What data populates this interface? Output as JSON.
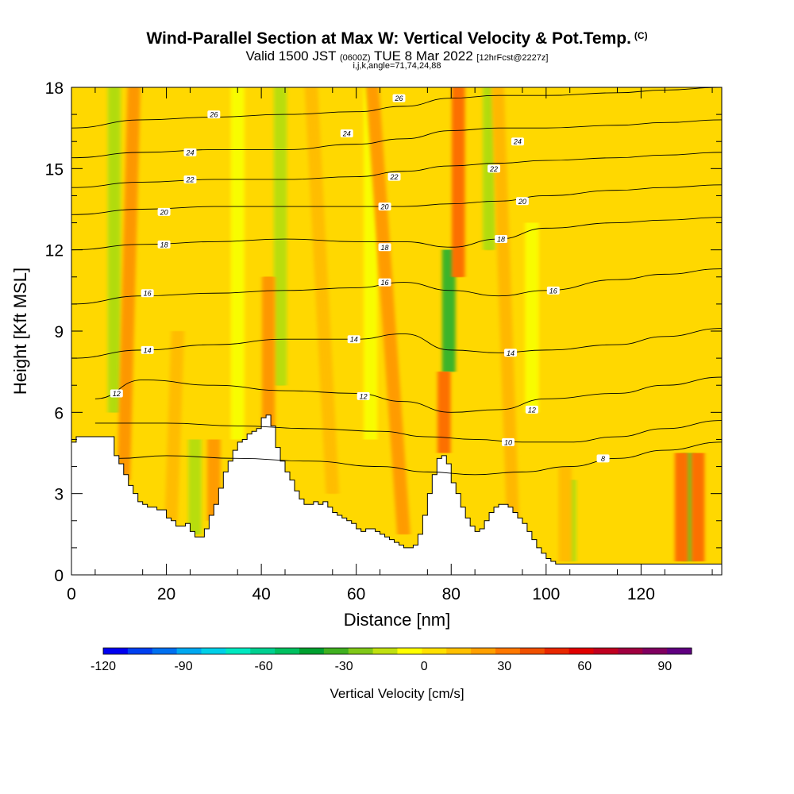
{
  "chart_data": {
    "type": "heatmap",
    "title": "Wind-Parallel Section at Max W: Vertical Velocity & Pot.Temp.",
    "title_mark": "(C)",
    "subtitle_prefix": "Valid 1500 JST",
    "subtitle_small1": "(0600Z)",
    "subtitle_main": "TUE 8 Mar 2022",
    "subtitle_small2": "[12hrFcst@2227z]",
    "subtitle2": "i,j,k,angle=71,74,24,88",
    "xlabel": "Distance [nm]",
    "ylabel": "Height [Kft MSL]",
    "xlim": [
      0,
      137
    ],
    "ylim": [
      0,
      18
    ],
    "xticks": [
      "0",
      "20",
      "40",
      "60",
      "80",
      "100",
      "120"
    ],
    "xtick_values": [
      0,
      20,
      40,
      60,
      80,
      100,
      120
    ],
    "yticks": [
      "0",
      "3",
      "6",
      "9",
      "12",
      "15",
      "18"
    ],
    "ytick_values": [
      0,
      3,
      6,
      9,
      12,
      15,
      18
    ],
    "colorbar": {
      "label": "Vertical Velocity [cm/s]",
      "range": [
        -120,
        100
      ],
      "tick_labels": [
        "-120",
        "-90",
        "-60",
        "-30",
        "0",
        "30",
        "60",
        "90"
      ],
      "tick_values": [
        -120,
        -90,
        -60,
        -30,
        0,
        30,
        60,
        90
      ],
      "colors": [
        "#0000f0",
        "#0040f0",
        "#0070f0",
        "#00a8f0",
        "#00d0e8",
        "#00e8c0",
        "#00d090",
        "#00c060",
        "#00a030",
        "#40b020",
        "#80c818",
        "#c0e010",
        "#ffff00",
        "#ffe000",
        "#ffc000",
        "#ffa000",
        "#ff7800",
        "#f05000",
        "#e82800",
        "#e00000",
        "#c00020",
        "#a00040",
        "#800060",
        "#600080"
      ]
    },
    "background_color": "#ffd800",
    "terrain": [
      [
        0,
        4.9
      ],
      [
        1,
        5.1
      ],
      [
        7,
        5.1
      ],
      [
        9,
        4.4
      ],
      [
        10,
        4.1
      ],
      [
        11,
        3.7
      ],
      [
        12,
        3.3
      ],
      [
        13,
        3.0
      ],
      [
        14,
        2.7
      ],
      [
        15,
        2.6
      ],
      [
        16,
        2.5
      ],
      [
        17,
        2.5
      ],
      [
        18,
        2.4
      ],
      [
        19,
        2.4
      ],
      [
        20,
        2.1
      ],
      [
        21,
        2.0
      ],
      [
        22,
        1.8
      ],
      [
        23,
        1.8
      ],
      [
        24,
        1.9
      ],
      [
        25,
        1.6
      ],
      [
        26,
        1.4
      ],
      [
        27,
        1.4
      ],
      [
        28,
        1.7
      ],
      [
        29,
        2.2
      ],
      [
        30,
        2.6
      ],
      [
        31,
        3.2
      ],
      [
        32,
        3.8
      ],
      [
        33,
        4.2
      ],
      [
        34,
        4.6
      ],
      [
        35,
        4.9
      ],
      [
        36,
        5.0
      ],
      [
        37,
        5.2
      ],
      [
        38,
        5.3
      ],
      [
        39,
        5.4
      ],
      [
        40,
        5.8
      ],
      [
        41,
        5.9
      ],
      [
        42,
        5.5
      ],
      [
        43,
        4.7
      ],
      [
        44,
        4.2
      ],
      [
        45,
        3.8
      ],
      [
        46,
        3.5
      ],
      [
        47,
        3.1
      ],
      [
        48,
        2.8
      ],
      [
        49,
        2.6
      ],
      [
        50,
        2.6
      ],
      [
        51,
        2.7
      ],
      [
        52,
        2.6
      ],
      [
        53,
        2.7
      ],
      [
        54,
        2.5
      ],
      [
        55,
        2.3
      ],
      [
        56,
        2.2
      ],
      [
        57,
        2.1
      ],
      [
        58,
        2.0
      ],
      [
        59,
        1.9
      ],
      [
        60,
        1.7
      ],
      [
        61,
        1.6
      ],
      [
        62,
        1.7
      ],
      [
        63,
        1.7
      ],
      [
        64,
        1.6
      ],
      [
        65,
        1.5
      ],
      [
        66,
        1.4
      ],
      [
        67,
        1.3
      ],
      [
        68,
        1.2
      ],
      [
        69,
        1.1
      ],
      [
        70,
        1.0
      ],
      [
        71,
        1.0
      ],
      [
        72,
        1.1
      ],
      [
        73,
        1.5
      ],
      [
        74,
        2.2
      ],
      [
        75,
        3.0
      ],
      [
        76,
        3.7
      ],
      [
        77,
        4.3
      ],
      [
        78,
        4.4
      ],
      [
        79,
        4.1
      ],
      [
        80,
        3.4
      ],
      [
        81,
        3.0
      ],
      [
        82,
        2.5
      ],
      [
        83,
        2.1
      ],
      [
        84,
        1.8
      ],
      [
        85,
        1.6
      ],
      [
        86,
        1.7
      ],
      [
        87,
        2.0
      ],
      [
        88,
        2.3
      ],
      [
        89,
        2.5
      ],
      [
        90,
        2.6
      ],
      [
        91,
        2.6
      ],
      [
        92,
        2.5
      ],
      [
        93,
        2.3
      ],
      [
        94,
        2.1
      ],
      [
        95,
        1.9
      ],
      [
        96,
        1.6
      ],
      [
        97,
        1.3
      ],
      [
        98,
        1.0
      ],
      [
        99,
        0.8
      ],
      [
        100,
        0.6
      ],
      [
        101,
        0.5
      ],
      [
        102,
        0.4
      ],
      [
        103,
        0.4
      ],
      [
        137,
        0.4
      ]
    ],
    "updrafts": [
      {
        "x": 11,
        "z0": 3.5,
        "z1": 18,
        "w": 55,
        "tilt": 0.15
      },
      {
        "x": 21,
        "z0": 2.0,
        "z1": 9,
        "w": 30,
        "tilt": 0.2
      },
      {
        "x": 30,
        "z0": 2.0,
        "z1": 5,
        "w": 50,
        "tilt": 0.0
      },
      {
        "x": 41.5,
        "z0": 5.5,
        "z1": 11,
        "w": 55,
        "tilt": 0.0
      },
      {
        "x": 55,
        "z0": 3.0,
        "z1": 18,
        "w": 25,
        "tilt": -0.3
      },
      {
        "x": 70,
        "z0": 1.5,
        "z1": 18,
        "w": 45,
        "tilt": -0.4
      },
      {
        "x": 78.5,
        "z0": 4.5,
        "z1": 7.5,
        "w": 70,
        "tilt": 0.0
      },
      {
        "x": 81.5,
        "z0": 11,
        "z1": 18,
        "w": 70,
        "tilt": 0.0
      },
      {
        "x": 93,
        "z0": 2.0,
        "z1": 18,
        "w": 40,
        "tilt": -0.2
      },
      {
        "x": 104,
        "z0": 0.5,
        "z1": 4,
        "w": 30,
        "tilt": 0.0
      },
      {
        "x": 128.5,
        "z0": 0.5,
        "z1": 4.5,
        "w": 70,
        "tilt": 0.0
      },
      {
        "x": 132,
        "z0": 0.5,
        "z1": 4.5,
        "w": 75,
        "tilt": 0.0
      }
    ],
    "downdrafts": [
      {
        "x": 9,
        "z0": 6.0,
        "z1": 18,
        "w": -45
      },
      {
        "x": 26,
        "z0": 1.5,
        "z1": 5,
        "w": -40
      },
      {
        "x": 35,
        "z0": 5.0,
        "z1": 18,
        "w": -20
      },
      {
        "x": 44,
        "z0": 7.0,
        "z1": 18,
        "w": -35
      },
      {
        "x": 63,
        "z0": 5.0,
        "z1": 18,
        "w": -25
      },
      {
        "x": 79.5,
        "z0": 7.5,
        "z1": 12,
        "w": -80
      },
      {
        "x": 88,
        "z0": 12,
        "z1": 18,
        "w": -45
      },
      {
        "x": 97,
        "z0": 6.0,
        "z1": 13,
        "w": -20
      },
      {
        "x": 105,
        "z0": 0.5,
        "z1": 3.5,
        "w": -45
      },
      {
        "x": 130,
        "z0": 0.5,
        "z1": 4.5,
        "w": -60
      }
    ],
    "isentropes": [
      {
        "level": 8,
        "points": [
          [
            10,
            4.3
          ],
          [
            20,
            4.4
          ],
          [
            35,
            4.3
          ],
          [
            50,
            4.2
          ],
          [
            65,
            4.0
          ],
          [
            75,
            3.8
          ],
          [
            85,
            3.7
          ],
          [
            95,
            3.8
          ],
          [
            105,
            4.0
          ],
          [
            115,
            4.3
          ],
          [
            125,
            4.6
          ],
          [
            137,
            4.9
          ]
        ]
      },
      {
        "level": 10,
        "points": [
          [
            5,
            5.6
          ],
          [
            20,
            5.6
          ],
          [
            35,
            5.5
          ],
          [
            50,
            5.4
          ],
          [
            65,
            5.3
          ],
          [
            75,
            5.1
          ],
          [
            85,
            5.0
          ],
          [
            95,
            4.9
          ],
          [
            105,
            4.9
          ],
          [
            115,
            5.1
          ],
          [
            125,
            5.4
          ],
          [
            137,
            5.7
          ]
        ]
      },
      {
        "level": 12,
        "points": [
          [
            5,
            6.5
          ],
          [
            15,
            7.2
          ],
          [
            30,
            7.0
          ],
          [
            45,
            6.8
          ],
          [
            60,
            6.7
          ],
          [
            70,
            6.4
          ],
          [
            80,
            6.0
          ],
          [
            90,
            6.1
          ],
          [
            100,
            6.5
          ],
          [
            115,
            6.7
          ],
          [
            125,
            7.0
          ],
          [
            137,
            7.3
          ]
        ]
      },
      {
        "level": 14,
        "points": [
          [
            0,
            8.0
          ],
          [
            15,
            8.3
          ],
          [
            30,
            8.5
          ],
          [
            45,
            8.7
          ],
          [
            60,
            8.7
          ],
          [
            70,
            8.9
          ],
          [
            80,
            8.3
          ],
          [
            90,
            8.2
          ],
          [
            100,
            8.3
          ],
          [
            115,
            8.5
          ],
          [
            125,
            8.8
          ],
          [
            137,
            9.1
          ]
        ]
      },
      {
        "level": 16,
        "points": [
          [
            0,
            10.0
          ],
          [
            15,
            10.3
          ],
          [
            30,
            10.4
          ],
          [
            45,
            10.5
          ],
          [
            60,
            10.6
          ],
          [
            70,
            10.8
          ],
          [
            80,
            10.5
          ],
          [
            90,
            10.3
          ],
          [
            100,
            10.5
          ],
          [
            115,
            10.9
          ],
          [
            125,
            11.1
          ],
          [
            137,
            11.3
          ]
        ]
      },
      {
        "level": 18,
        "points": [
          [
            0,
            12.0
          ],
          [
            15,
            12.2
          ],
          [
            30,
            12.3
          ],
          [
            45,
            12.4
          ],
          [
            60,
            12.3
          ],
          [
            70,
            12.3
          ],
          [
            80,
            12.1
          ],
          [
            90,
            12.4
          ],
          [
            100,
            12.8
          ],
          [
            115,
            13.0
          ],
          [
            125,
            13.1
          ],
          [
            137,
            13.2
          ]
        ]
      },
      {
        "level": 20,
        "points": [
          [
            0,
            13.3
          ],
          [
            15,
            13.5
          ],
          [
            30,
            13.6
          ],
          [
            45,
            13.6
          ],
          [
            60,
            13.6
          ],
          [
            70,
            13.6
          ],
          [
            80,
            13.7
          ],
          [
            90,
            13.8
          ],
          [
            100,
            14.0
          ],
          [
            115,
            14.2
          ],
          [
            125,
            14.3
          ],
          [
            137,
            14.4
          ]
        ]
      },
      {
        "level": 22,
        "points": [
          [
            0,
            14.3
          ],
          [
            15,
            14.5
          ],
          [
            30,
            14.6
          ],
          [
            45,
            14.6
          ],
          [
            60,
            14.7
          ],
          [
            70,
            14.9
          ],
          [
            80,
            15.1
          ],
          [
            90,
            15.2
          ],
          [
            100,
            15.3
          ],
          [
            115,
            15.4
          ],
          [
            125,
            15.5
          ],
          [
            137,
            15.6
          ]
        ]
      },
      {
        "level": 24,
        "points": [
          [
            0,
            15.4
          ],
          [
            15,
            15.6
          ],
          [
            30,
            15.7
          ],
          [
            45,
            15.7
          ],
          [
            60,
            15.9
          ],
          [
            70,
            16.1
          ],
          [
            80,
            16.4
          ],
          [
            90,
            16.5
          ],
          [
            100,
            16.5
          ],
          [
            115,
            16.6
          ],
          [
            125,
            16.7
          ],
          [
            137,
            16.8
          ]
        ]
      },
      {
        "level": 26,
        "points": [
          [
            0,
            16.5
          ],
          [
            15,
            16.8
          ],
          [
            30,
            16.9
          ],
          [
            45,
            17.0
          ],
          [
            60,
            17.1
          ],
          [
            70,
            17.3
          ],
          [
            80,
            17.6
          ],
          [
            90,
            17.7
          ],
          [
            100,
            17.7
          ],
          [
            115,
            17.8
          ],
          [
            125,
            17.9
          ],
          [
            137,
            18.0
          ]
        ]
      }
    ],
    "contour_labels": [
      {
        "text": "12",
        "x": 9.5,
        "z": 6.7
      },
      {
        "text": "14",
        "x": 16,
        "z": 8.3
      },
      {
        "text": "16",
        "x": 16,
        "z": 10.4
      },
      {
        "text": "18",
        "x": 19.5,
        "z": 12.2
      },
      {
        "text": "20",
        "x": 19.5,
        "z": 13.4
      },
      {
        "text": "22",
        "x": 25,
        "z": 14.6
      },
      {
        "text": "24",
        "x": 25,
        "z": 15.6
      },
      {
        "text": "26",
        "x": 30,
        "z": 17.0
      },
      {
        "text": "12",
        "x": 61.5,
        "z": 6.6
      },
      {
        "text": "14",
        "x": 59.5,
        "z": 8.7
      },
      {
        "text": "16",
        "x": 66,
        "z": 10.8
      },
      {
        "text": "18",
        "x": 66,
        "z": 12.1
      },
      {
        "text": "20",
        "x": 66,
        "z": 13.6
      },
      {
        "text": "22",
        "x": 68,
        "z": 14.7
      },
      {
        "text": "24",
        "x": 58,
        "z": 16.3
      },
      {
        "text": "26",
        "x": 69,
        "z": 17.6
      },
      {
        "text": "10",
        "x": 92,
        "z": 4.9
      },
      {
        "text": "12",
        "x": 97,
        "z": 6.1
      },
      {
        "text": "14",
        "x": 92.5,
        "z": 8.2
      },
      {
        "text": "16",
        "x": 101.5,
        "z": 10.5
      },
      {
        "text": "18",
        "x": 90.5,
        "z": 12.4
      },
      {
        "text": "20",
        "x": 95,
        "z": 13.8
      },
      {
        "text": "22",
        "x": 89,
        "z": 15.0
      },
      {
        "text": "24",
        "x": 94,
        "z": 16.0
      },
      {
        "text": "8",
        "x": 112,
        "z": 4.3
      }
    ]
  }
}
